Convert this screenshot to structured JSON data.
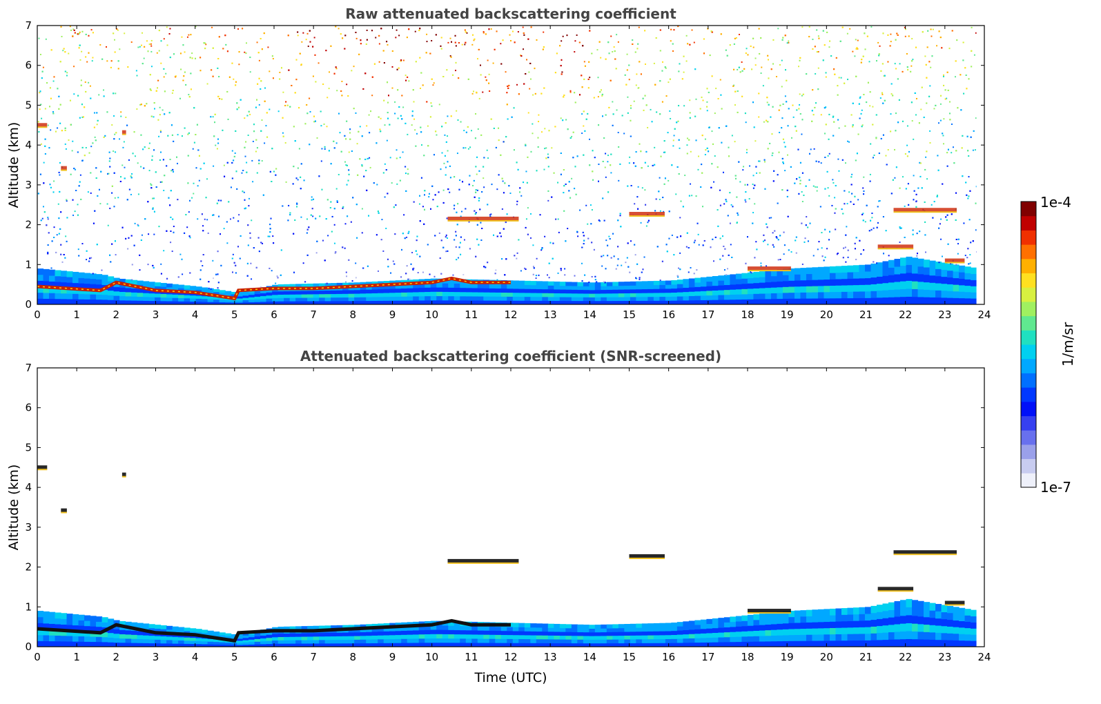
{
  "colors": {
    "colormap": [
      "#eef0fa",
      "#c8ccf0",
      "#9aa0ea",
      "#6870ee",
      "#3640f0",
      "#0010f8",
      "#0038ff",
      "#0070ff",
      "#00a8ff",
      "#00d0f0",
      "#20e0c0",
      "#60e890",
      "#a0f060",
      "#d8f040",
      "#ffe020",
      "#ffb000",
      "#ff7000",
      "#f03000",
      "#c00000",
      "#800000"
    ],
    "profile_black": "#111111",
    "title": "#444444"
  },
  "colorbar": {
    "label": "1/m/sr",
    "max_label": "1e-4",
    "min_label": "1e-7",
    "range": [
      1e-07,
      0.0001
    ],
    "scale": "log"
  },
  "chart_data": [
    {
      "type": "heatmap",
      "title": "Raw attenuated backscattering coefficient",
      "xlabel": "",
      "ylabel": "Altitude (km)",
      "xlim": [
        0,
        24
      ],
      "ylim": [
        0,
        7
      ],
      "xticks": [
        "0",
        "1",
        "2",
        "3",
        "4",
        "5",
        "6",
        "7",
        "8",
        "9",
        "10",
        "11",
        "12",
        "13",
        "14",
        "15",
        "16",
        "17",
        "18",
        "19",
        "20",
        "21",
        "22",
        "23",
        "24"
      ],
      "yticks": [
        "0",
        "1",
        "2",
        "3",
        "4",
        "5",
        "6",
        "7"
      ],
      "data_end_time": 23.8,
      "boundary_layer_top_km": [
        [
          0,
          0.9
        ],
        [
          1.6,
          0.75
        ],
        [
          2,
          0.65
        ],
        [
          4,
          0.45
        ],
        [
          5,
          0.3
        ],
        [
          6,
          0.5
        ],
        [
          8,
          0.55
        ],
        [
          10,
          0.65
        ],
        [
          12,
          0.6
        ],
        [
          14,
          0.55
        ],
        [
          16,
          0.6
        ],
        [
          18,
          0.8
        ],
        [
          19,
          0.9
        ],
        [
          21,
          1.0
        ],
        [
          22,
          1.2
        ],
        [
          23.8,
          0.9
        ]
      ],
      "cloud_layer_base_km": [
        [
          0,
          0.45
        ],
        [
          1.6,
          0.35
        ],
        [
          2,
          0.55
        ],
        [
          3,
          0.35
        ],
        [
          4,
          0.3
        ],
        [
          5,
          0.15
        ],
        [
          5.1,
          0.35
        ],
        [
          6,
          0.4
        ],
        [
          7,
          0.4
        ],
        [
          8,
          0.45
        ],
        [
          9,
          0.5
        ],
        [
          10,
          0.55
        ],
        [
          10.5,
          0.65
        ],
        [
          11,
          0.55
        ],
        [
          12,
          0.55
        ]
      ],
      "features": [
        {
          "t0": 0.0,
          "t1": 0.25,
          "alt": 4.5
        },
        {
          "t0": 0.6,
          "t1": 0.75,
          "alt": 3.42
        },
        {
          "t0": 2.15,
          "t1": 2.25,
          "alt": 4.32
        },
        {
          "t0": 10.4,
          "t1": 12.2,
          "alt": 2.15
        },
        {
          "t0": 15.0,
          "t1": 15.9,
          "alt": 2.27
        },
        {
          "t0": 21.7,
          "t1": 23.3,
          "alt": 2.37
        },
        {
          "t0": 21.3,
          "t1": 22.2,
          "alt": 1.45
        },
        {
          "t0": 23.0,
          "t1": 23.5,
          "alt": 1.1
        },
        {
          "t0": 18.0,
          "t1": 19.1,
          "alt": 0.9
        }
      ]
    },
    {
      "type": "heatmap",
      "title": "Attenuated backscattering coefficient (SNR-screened)",
      "xlabel": "Time (UTC)",
      "ylabel": "Altitude (km)",
      "xlim": [
        0,
        24
      ],
      "ylim": [
        0,
        7
      ],
      "xticks": [
        "0",
        "1",
        "2",
        "3",
        "4",
        "5",
        "6",
        "7",
        "8",
        "9",
        "10",
        "11",
        "12",
        "13",
        "14",
        "15",
        "16",
        "17",
        "18",
        "19",
        "20",
        "21",
        "22",
        "23",
        "24"
      ],
      "yticks": [
        "0",
        "1",
        "2",
        "3",
        "4",
        "5",
        "6",
        "7"
      ],
      "data_end_time": 23.8,
      "boundary_layer_top_km": [
        [
          0,
          0.9
        ],
        [
          1.6,
          0.75
        ],
        [
          2,
          0.65
        ],
        [
          4,
          0.45
        ],
        [
          5,
          0.3
        ],
        [
          6,
          0.5
        ],
        [
          8,
          0.55
        ],
        [
          10,
          0.65
        ],
        [
          12,
          0.6
        ],
        [
          14,
          0.55
        ],
        [
          16,
          0.6
        ],
        [
          18,
          0.8
        ],
        [
          19,
          0.9
        ],
        [
          21,
          1.0
        ],
        [
          22,
          1.2
        ],
        [
          23.8,
          0.9
        ]
      ],
      "cloud_layer_base_km": [
        [
          0,
          0.45
        ],
        [
          1.6,
          0.35
        ],
        [
          2,
          0.55
        ],
        [
          3,
          0.35
        ],
        [
          4,
          0.3
        ],
        [
          5,
          0.15
        ],
        [
          5.1,
          0.35
        ],
        [
          6,
          0.4
        ],
        [
          7,
          0.4
        ],
        [
          8,
          0.45
        ],
        [
          9,
          0.5
        ],
        [
          10,
          0.55
        ],
        [
          10.5,
          0.65
        ],
        [
          11,
          0.55
        ],
        [
          12,
          0.55
        ]
      ],
      "features": [
        {
          "t0": 0.0,
          "t1": 0.25,
          "alt": 4.5
        },
        {
          "t0": 0.6,
          "t1": 0.75,
          "alt": 3.42
        },
        {
          "t0": 2.15,
          "t1": 2.25,
          "alt": 4.32
        },
        {
          "t0": 10.4,
          "t1": 12.2,
          "alt": 2.15
        },
        {
          "t0": 15.0,
          "t1": 15.9,
          "alt": 2.27
        },
        {
          "t0": 21.7,
          "t1": 23.3,
          "alt": 2.37
        },
        {
          "t0": 21.3,
          "t1": 22.2,
          "alt": 1.45
        },
        {
          "t0": 23.0,
          "t1": 23.5,
          "alt": 1.1
        },
        {
          "t0": 18.0,
          "t1": 19.1,
          "alt": 0.9
        }
      ]
    }
  ]
}
